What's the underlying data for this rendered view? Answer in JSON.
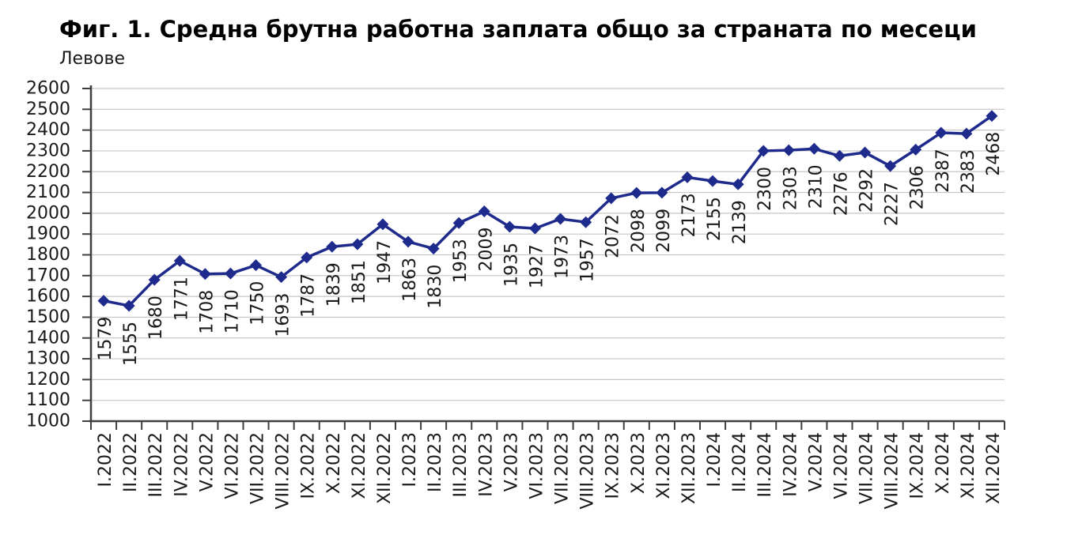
{
  "page": {
    "title": "Фиг. 1. Средна брутна работна заплата общо за страната по месеци",
    "units_label": "Левове"
  },
  "chart_data": {
    "type": "line",
    "title": "Фиг. 1. Средна брутна работна заплата общо за страната по месеци",
    "ylabel": "Левове",
    "xlabel": "",
    "categories": [
      "I.2022",
      "II.2022",
      "III.2022",
      "IV.2022",
      "V.2022",
      "VI.2022",
      "VII.2022",
      "VIII.2022",
      "IX.2022",
      "X.2022",
      "XI.2022",
      "XII.2022",
      "I.2023",
      "II.2023",
      "III.2023",
      "IV.2023",
      "V.2023",
      "VI.2023",
      "VII.2023",
      "VIII.2023",
      "IX.2023",
      "X.2023",
      "XI.2023",
      "XII.2023",
      "I.2024",
      "II.2024",
      "III.2024",
      "IV.2024",
      "V.2024",
      "VI.2024",
      "VII.2024",
      "VIII.2024",
      "IX.2024",
      "X.2024",
      "XI.2024",
      "XII.2024"
    ],
    "values": [
      1579,
      1555,
      1680,
      1771,
      1708,
      1710,
      1750,
      1693,
      1787,
      1839,
      1851,
      1947,
      1863,
      1830,
      1953,
      2009,
      1935,
      1927,
      1973,
      1957,
      2072,
      2098,
      2099,
      2173,
      2155,
      2139,
      2300,
      2303,
      2310,
      2276,
      2292,
      2227,
      2306,
      2387,
      2383,
      2468
    ],
    "ylim": [
      1000,
      2600
    ],
    "ytick_step": 100,
    "yticks": [
      1000,
      1100,
      1200,
      1300,
      1400,
      1500,
      1600,
      1700,
      1800,
      1900,
      2000,
      2100,
      2200,
      2300,
      2400,
      2500,
      2600
    ],
    "grid": true,
    "legend": false,
    "data_labels": true,
    "data_label_rotation": -90,
    "x_label_rotation": -90,
    "marker": "diamond",
    "colors": {
      "line": "#1E2B8C",
      "marker": "#1E2B8C",
      "grid": "#C6C6C6",
      "axis": "#3F3F3F",
      "tick_text": "#1A1A1A",
      "data_label_text": "#1A1A1A",
      "title_text": "#000000",
      "background": "#FFFFFF"
    }
  }
}
